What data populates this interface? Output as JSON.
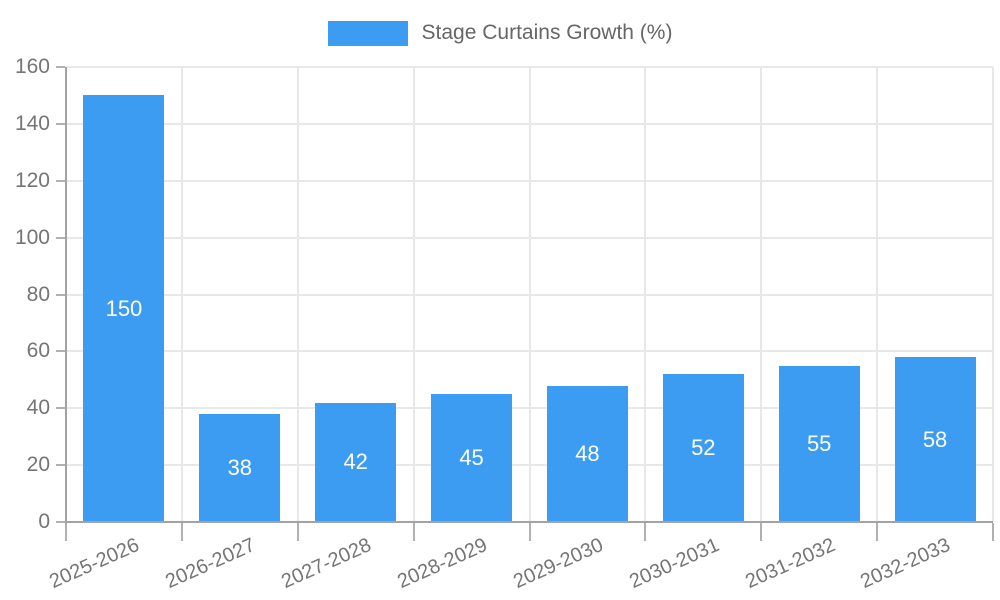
{
  "chart_data": {
    "type": "bar",
    "legend_label": "Stage Curtains Growth (%)",
    "categories": [
      "2025-2026",
      "2026-2027",
      "2027-2028",
      "2028-2029",
      "2029-2030",
      "2030-2031",
      "2031-2032",
      "2032-2033"
    ],
    "values": [
      150,
      38,
      42,
      45,
      48,
      52,
      55,
      58
    ],
    "title": "",
    "xlabel": "",
    "ylabel": "",
    "ylim": [
      0,
      160
    ],
    "ytick_step": 20,
    "ytick_labels": [
      "0",
      "20",
      "40",
      "60",
      "80",
      "100",
      "120",
      "140",
      "160"
    ],
    "grid": true,
    "legend_position": "top-center",
    "colors": {
      "bar": "#3b9cf2",
      "bar_label": "#ffffff",
      "grid": "#e8e8e8",
      "axis": "#a3a3a3",
      "tick": "#b0b0b0",
      "tick_text": "#757575",
      "legend_text": "#666666",
      "background": "#ffffff"
    }
  }
}
